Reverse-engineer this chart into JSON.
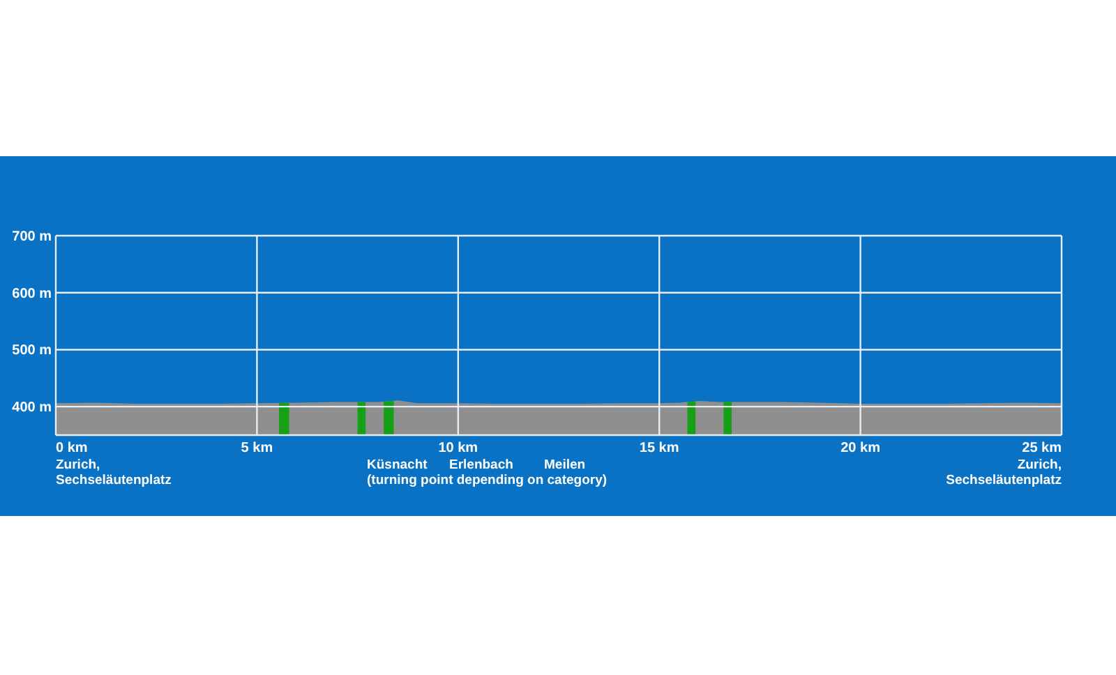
{
  "chart_data": {
    "type": "area",
    "x": [
      0,
      1,
      2,
      3,
      4,
      5,
      6,
      7,
      8,
      8.5,
      9,
      10,
      11,
      12,
      13,
      14,
      15,
      15.5,
      16,
      16.5,
      17,
      18,
      19,
      20,
      21,
      22,
      23,
      24,
      25
    ],
    "series": [
      {
        "color": "#8f8f8f",
        "values": [
          406,
          407,
          405,
          405,
          405,
          406,
          407,
          408,
          408,
          411,
          406,
          406,
          405,
          405,
          405,
          406,
          406,
          407,
          410,
          408,
          408,
          408,
          407,
          405,
          405,
          405,
          406,
          407,
          406
        ]
      }
    ],
    "xlim": [
      0,
      25
    ],
    "ylim": [
      350,
      700
    ],
    "xticks": [
      {
        "value": 0,
        "label": "0 km"
      },
      {
        "value": 5,
        "label": "5 km"
      },
      {
        "value": 10,
        "label": "10 km"
      },
      {
        "value": 15,
        "label": "15 km"
      },
      {
        "value": 20,
        "label": "20 km"
      },
      {
        "value": 25,
        "label": "25 km"
      }
    ],
    "yticks": [
      {
        "value": 400,
        "label": "400 m"
      },
      {
        "value": 500,
        "label": "500 m"
      },
      {
        "value": 600,
        "label": "600 m"
      },
      {
        "value": 700,
        "label": "700 m"
      }
    ],
    "grid": true,
    "bands": [
      {
        "axis": "x",
        "from": 5.55,
        "to": 5.8,
        "color": "#16a016"
      },
      {
        "axis": "x",
        "from": 7.5,
        "to": 7.7,
        "color": "#16a016"
      },
      {
        "axis": "x",
        "from": 8.15,
        "to": 8.4,
        "color": "#16a016"
      },
      {
        "axis": "x",
        "from": 15.7,
        "to": 15.9,
        "color": "#16a016"
      },
      {
        "axis": "x",
        "from": 16.6,
        "to": 16.8,
        "color": "#16a016"
      }
    ],
    "annotations": [
      "Zurich,\nSechseläutenplatz",
      "Küsnacht\n(turning point depending on category)",
      "Erlenbach",
      "Meilen",
      "Zurich,\nSechseläutenplatz"
    ]
  }
}
